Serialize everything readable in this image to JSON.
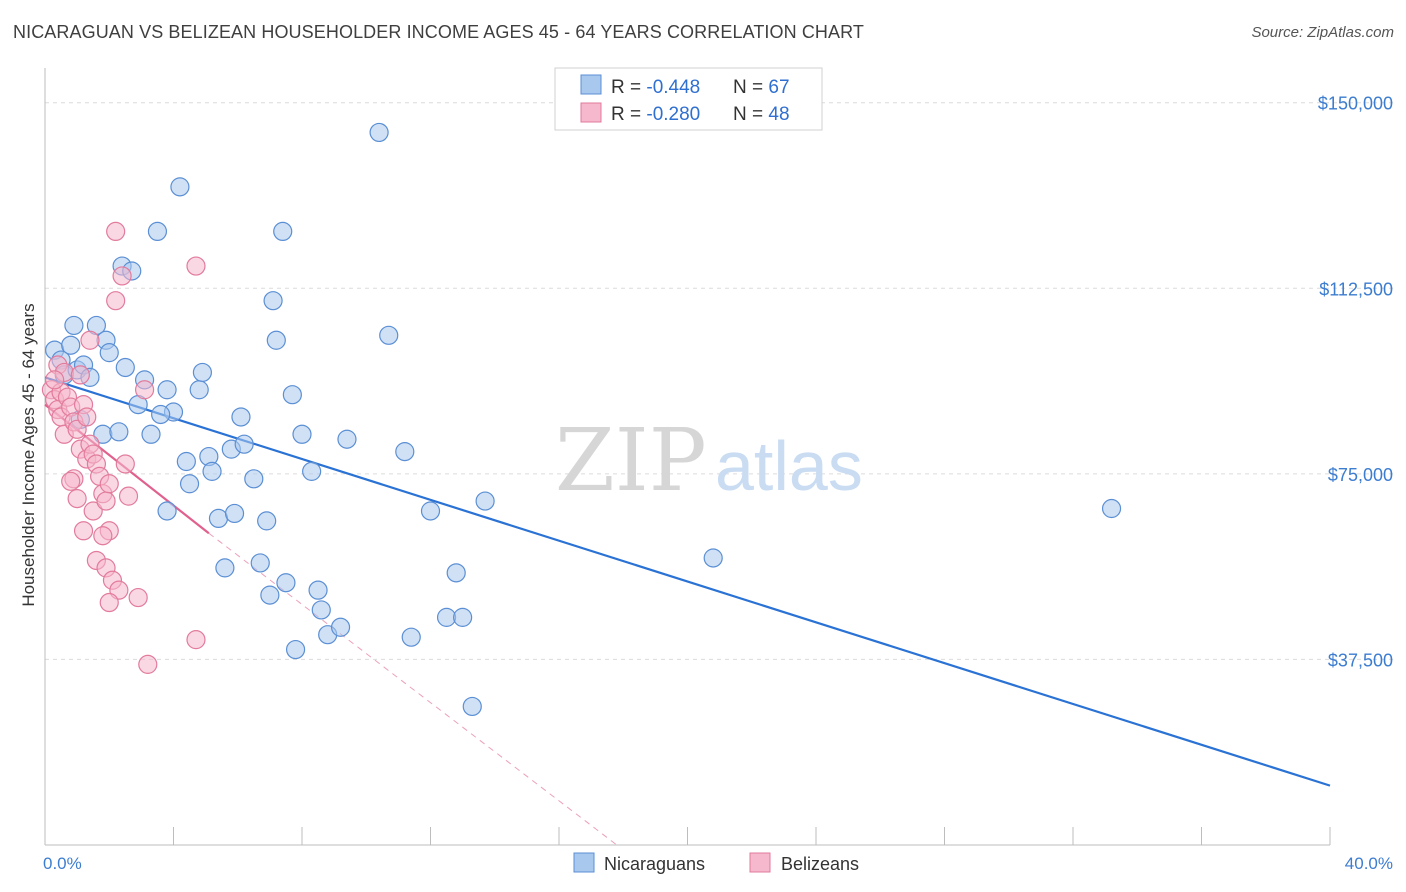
{
  "title": "NICARAGUAN VS BELIZEAN HOUSEHOLDER INCOME AGES 45 - 64 YEARS CORRELATION CHART",
  "source": "Source: ZipAtlas.com",
  "watermark": {
    "zip": "ZIP",
    "atlas": "atlas"
  },
  "colors": {
    "blue_fill": "#a9c8ee",
    "blue_stroke": "#5b8fd4",
    "blue_line": "#2a72d4",
    "pink_fill": "#f5b8cc",
    "pink_stroke": "#e27b9c",
    "pink_line": "#e0608e",
    "axis_text": "#3d7dd0",
    "grid": "#dcdcdc"
  },
  "legend": {
    "rows": [
      {
        "r_label": "R = ",
        "r_value": "-0.448",
        "n_label": "N = ",
        "n_value": "67"
      },
      {
        "r_label": "R = ",
        "r_value": "-0.280",
        "n_label": "N = ",
        "n_value": "48"
      }
    ]
  },
  "bottom_legend": [
    "Nicaraguans",
    "Belizeans"
  ],
  "chart_data": {
    "type": "scatter",
    "title": "NICARAGUAN VS BELIZEAN HOUSEHOLDER INCOME AGES 45 - 64 YEARS CORRELATION CHART",
    "xlabel": "",
    "ylabel": "Householder Income Ages 45 - 64 years",
    "xlim": [
      0,
      40
    ],
    "ylim": [
      0,
      155000
    ],
    "x_tick_labels": [
      "0.0%",
      "40.0%"
    ],
    "y_ticks": [
      37500,
      75000,
      112500,
      150000
    ],
    "y_tick_labels": [
      "$37,500",
      "$75,000",
      "$112,500",
      "$150,000"
    ],
    "grid": true,
    "legend_placement": "top-center",
    "series": [
      {
        "name": "Nicaraguans",
        "R": -0.448,
        "N": 67,
        "trend": {
          "x": [
            0.0,
            40.0
          ],
          "y": [
            94500,
            12000
          ]
        },
        "points": [
          [
            0.3,
            100000
          ],
          [
            0.5,
            98000
          ],
          [
            0.8,
            101000
          ],
          [
            0.6,
            95000
          ],
          [
            1.0,
            96000
          ],
          [
            1.2,
            97000
          ],
          [
            1.4,
            94500
          ],
          [
            1.1,
            86000
          ],
          [
            0.9,
            105000
          ],
          [
            1.6,
            105000
          ],
          [
            1.9,
            102000
          ],
          [
            2.0,
            99500
          ],
          [
            2.5,
            96500
          ],
          [
            2.4,
            117000
          ],
          [
            2.7,
            116000
          ],
          [
            3.1,
            94000
          ],
          [
            3.3,
            83000
          ],
          [
            2.9,
            89000
          ],
          [
            1.8,
            83000
          ],
          [
            2.3,
            83500
          ],
          [
            3.5,
            124000
          ],
          [
            4.2,
            133000
          ],
          [
            3.8,
            92000
          ],
          [
            4.0,
            87500
          ],
          [
            3.6,
            87000
          ],
          [
            4.4,
            77500
          ],
          [
            4.5,
            73000
          ],
          [
            3.8,
            67500
          ],
          [
            4.8,
            92000
          ],
          [
            4.9,
            95500
          ],
          [
            5.1,
            78500
          ],
          [
            5.2,
            75500
          ],
          [
            5.4,
            66000
          ],
          [
            5.9,
            67000
          ],
          [
            5.6,
            56000
          ],
          [
            5.8,
            80000
          ],
          [
            6.1,
            86500
          ],
          [
            6.2,
            81000
          ],
          [
            6.5,
            74000
          ],
          [
            6.7,
            57000
          ],
          [
            6.9,
            65500
          ],
          [
            7.0,
            50500
          ],
          [
            7.1,
            110000
          ],
          [
            7.2,
            102000
          ],
          [
            7.4,
            124000
          ],
          [
            7.5,
            53000
          ],
          [
            7.7,
            91000
          ],
          [
            7.8,
            39500
          ],
          [
            8.0,
            83000
          ],
          [
            8.3,
            75500
          ],
          [
            8.6,
            47500
          ],
          [
            8.5,
            51500
          ],
          [
            8.8,
            42500
          ],
          [
            9.2,
            44000
          ],
          [
            9.4,
            82000
          ],
          [
            10.4,
            144000
          ],
          [
            10.7,
            103000
          ],
          [
            11.2,
            79500
          ],
          [
            11.4,
            42000
          ],
          [
            12.0,
            67500
          ],
          [
            12.5,
            46000
          ],
          [
            12.8,
            55000
          ],
          [
            13.0,
            46000
          ],
          [
            13.3,
            28000
          ],
          [
            13.7,
            69500
          ],
          [
            20.8,
            58000
          ],
          [
            33.2,
            68000
          ]
        ]
      },
      {
        "name": "Belizeans",
        "R": -0.28,
        "N": 48,
        "trend": {
          "x": [
            0.0,
            5.1
          ],
          "y": [
            89000,
            63000
          ],
          "dashed_to": {
            "x": 17.8,
            "y": 0
          }
        },
        "points": [
          [
            0.2,
            92000
          ],
          [
            0.3,
            90000
          ],
          [
            0.4,
            88000
          ],
          [
            0.5,
            91500
          ],
          [
            0.4,
            97000
          ],
          [
            0.6,
            95500
          ],
          [
            0.7,
            90500
          ],
          [
            0.5,
            86500
          ],
          [
            0.6,
            83000
          ],
          [
            0.8,
            88500
          ],
          [
            0.9,
            85500
          ],
          [
            1.0,
            84000
          ],
          [
            1.1,
            95000
          ],
          [
            1.2,
            89000
          ],
          [
            1.3,
            86500
          ],
          [
            1.1,
            80000
          ],
          [
            1.3,
            78000
          ],
          [
            1.4,
            81000
          ],
          [
            1.5,
            79000
          ],
          [
            1.6,
            77000
          ],
          [
            1.7,
            74500
          ],
          [
            1.8,
            71000
          ],
          [
            1.5,
            67500
          ],
          [
            1.9,
            69500
          ],
          [
            2.0,
            63500
          ],
          [
            1.6,
            57500
          ],
          [
            1.9,
            56000
          ],
          [
            2.1,
            53500
          ],
          [
            2.3,
            51500
          ],
          [
            2.0,
            49000
          ],
          [
            2.5,
            77000
          ],
          [
            2.4,
            115000
          ],
          [
            2.2,
            124000
          ],
          [
            2.2,
            110000
          ],
          [
            1.4,
            102000
          ],
          [
            2.0,
            73000
          ],
          [
            2.9,
            50000
          ],
          [
            3.2,
            36500
          ],
          [
            3.1,
            92000
          ],
          [
            4.7,
            117000
          ],
          [
            4.7,
            41500
          ],
          [
            0.9,
            74000
          ],
          [
            0.8,
            73500
          ],
          [
            1.2,
            63500
          ],
          [
            1.8,
            62500
          ],
          [
            2.6,
            70500
          ],
          [
            0.3,
            94000
          ],
          [
            1.0,
            70000
          ]
        ]
      }
    ]
  }
}
